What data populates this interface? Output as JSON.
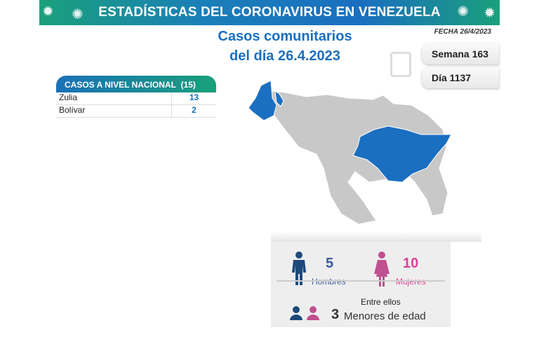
{
  "banner": {
    "title": "ESTADÍSTICAS DEL CORONAVIRUS EN VENEZUELA"
  },
  "header": {
    "title_line1": "Casos comunitarios",
    "title_line2": "del día 26.4.2023",
    "fecha": "FECHA 26/4/2023",
    "semana": "Semana 163",
    "dia": "Día 1137"
  },
  "table": {
    "header": "CASOS A NIVEL NACIONAL",
    "total": "(15)",
    "rows": [
      {
        "state": "Zulia",
        "cases": "13"
      },
      {
        "state": "Bolívar",
        "cases": "2"
      }
    ]
  },
  "map": {
    "highlighted_states": [
      "Zulia",
      "Bolívar"
    ],
    "highlight_color": "#1a6fc0",
    "base_color": "#c8c8c8"
  },
  "stats": {
    "men_count": "5",
    "men_label": "Hombres",
    "women_count": "10",
    "women_label": "Mujeres",
    "among": "Entre ellos",
    "minors_count": "3",
    "minors_label": "Menores de edad",
    "men_color": "#1d4a7a",
    "women_color": "#c0508f"
  }
}
